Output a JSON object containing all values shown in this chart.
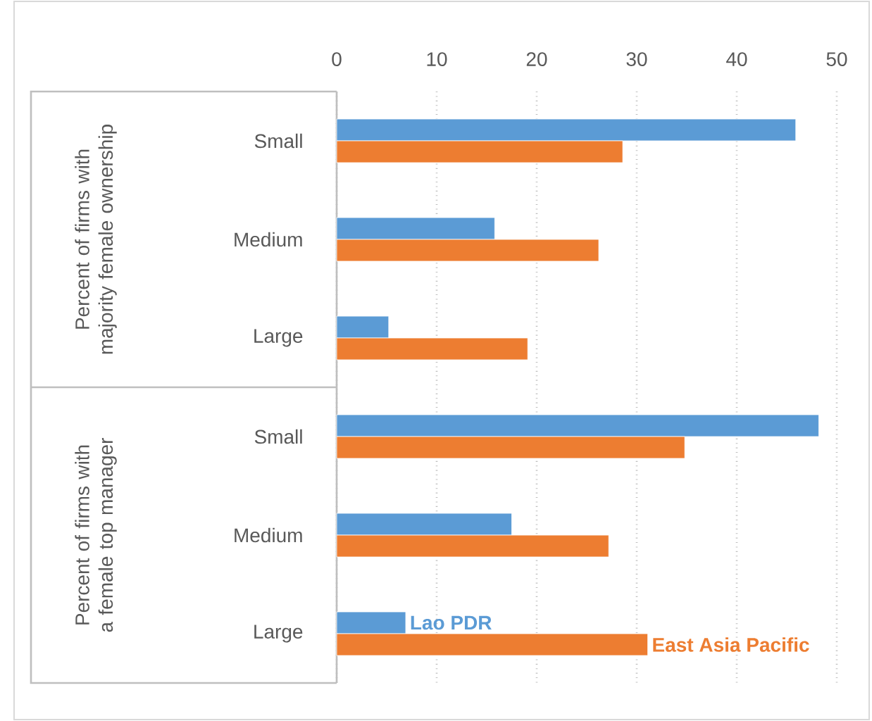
{
  "chart_data": {
    "type": "bar",
    "orientation": "horizontal",
    "categories": [
      "Small",
      "Medium",
      "Large",
      "Small",
      "Medium",
      "Large"
    ],
    "series": [
      {
        "name": "Lao PDR",
        "color": "#5b9bd5",
        "values": [
          45.9,
          15.8,
          5.2,
          48.2,
          17.5,
          6.9
        ]
      },
      {
        "name": "East Asia Pacific",
        "color": "#ed7d31",
        "values": [
          28.6,
          26.2,
          19.1,
          34.8,
          27.2,
          31.1
        ]
      }
    ],
    "annotations": [
      "Percent of firms with majority female ownership",
      "Percent of firms with a female top manager"
    ],
    "xlim": [
      0,
      50
    ],
    "xticks": [
      0,
      10,
      20,
      30,
      40,
      50
    ],
    "grid": "x"
  }
}
